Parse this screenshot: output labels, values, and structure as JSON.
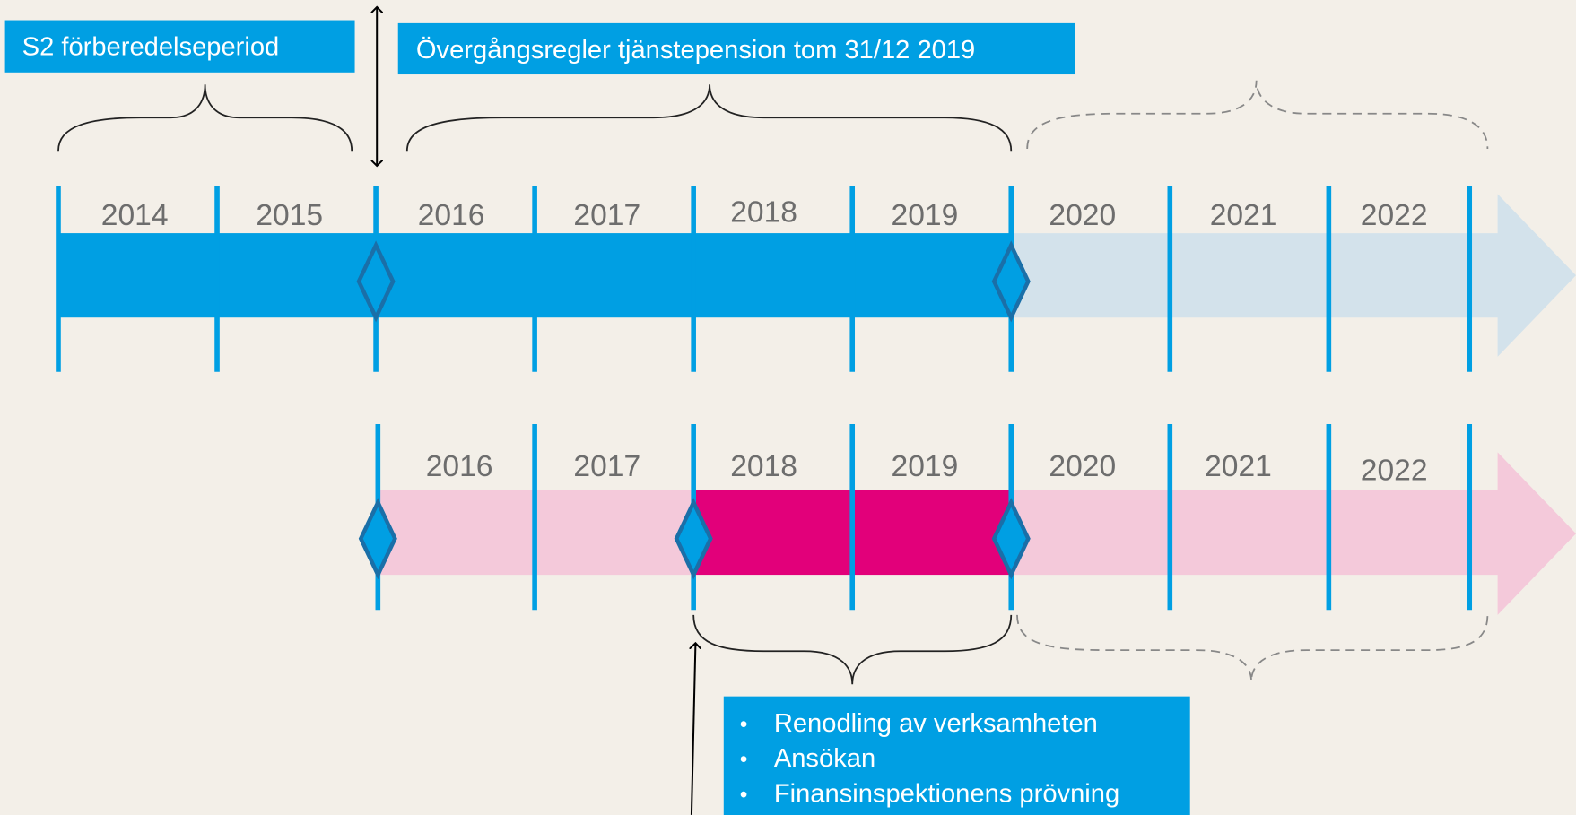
{
  "labels": {
    "s2_period": "S2 förberedelseperiod",
    "transition_rules": "Övergångsregler tjänstepension tom 31/12 2019"
  },
  "timeline_1": {
    "years": [
      "2014",
      "2015",
      "2016",
      "2017",
      "2018",
      "2019",
      "2020",
      "2021",
      "2022"
    ]
  },
  "timeline_2": {
    "years": [
      "2016",
      "2017",
      "2018",
      "2019",
      "2020",
      "2021",
      "2022"
    ]
  },
  "bullets": [
    "Renodling av verksamheten",
    "Ansökan",
    "Finansinspektionens prövning"
  ]
}
